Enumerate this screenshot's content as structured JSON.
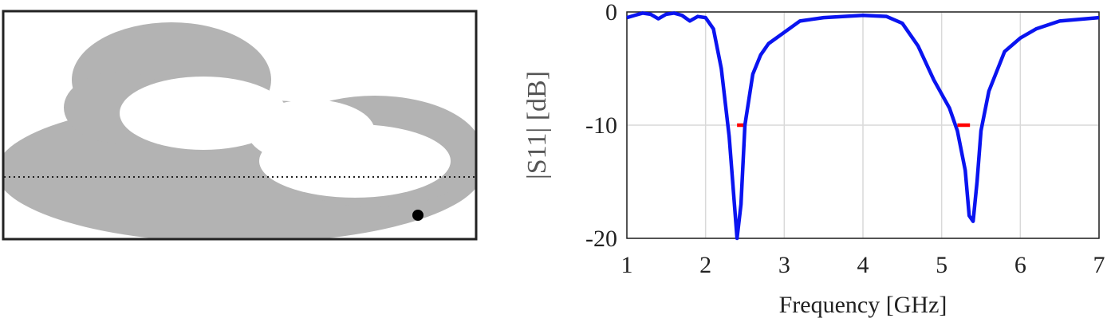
{
  "chart_data": {
    "type": "line",
    "xlabel": "Frequency [GHz]",
    "ylabel": "|S11| [dB]",
    "xlim": [
      1,
      7
    ],
    "xticks": [
      1,
      2,
      3,
      4,
      5,
      6,
      7
    ],
    "ylim": [
      -20,
      0
    ],
    "yticks": [
      -20,
      -10,
      0
    ],
    "grid": true,
    "series": [
      {
        "color": "#0a14f0",
        "x": [
          1,
          1.1,
          1.2,
          1.3,
          1.4,
          1.5,
          1.6,
          1.7,
          1.8,
          1.9,
          2.0,
          2.1,
          2.2,
          2.3,
          2.4,
          2.45,
          2.5,
          2.6,
          2.7,
          2.8,
          3.0,
          3.2,
          3.5,
          4.0,
          4.3,
          4.5,
          4.7,
          4.9,
          5.1,
          5.2,
          5.3,
          5.35,
          5.4,
          5.45,
          5.5,
          5.6,
          5.8,
          6.0,
          6.2,
          6.5,
          7
        ],
        "values": [
          -0.5,
          -0.3,
          -0.1,
          -0.2,
          -0.6,
          -0.2,
          -0.1,
          -0.3,
          -0.8,
          -0.4,
          -0.5,
          -1.5,
          -5,
          -11,
          -20,
          -17,
          -10,
          -5.5,
          -3.8,
          -2.8,
          -1.8,
          -0.8,
          -0.5,
          -0.3,
          -0.4,
          -1,
          -3,
          -6,
          -8.5,
          -10.5,
          -14,
          -18,
          -18.5,
          -15,
          -10.5,
          -7,
          -3.5,
          -2.3,
          -1.5,
          -0.8,
          -0.5
        ]
      },
      {
        "color": "#ff0000",
        "x": [
          2.4,
          2.48,
          3.8,
          5.2,
          5.36
        ],
        "values": [
          -10,
          -10,
          null,
          -10,
          -10
        ]
      }
    ]
  }
}
